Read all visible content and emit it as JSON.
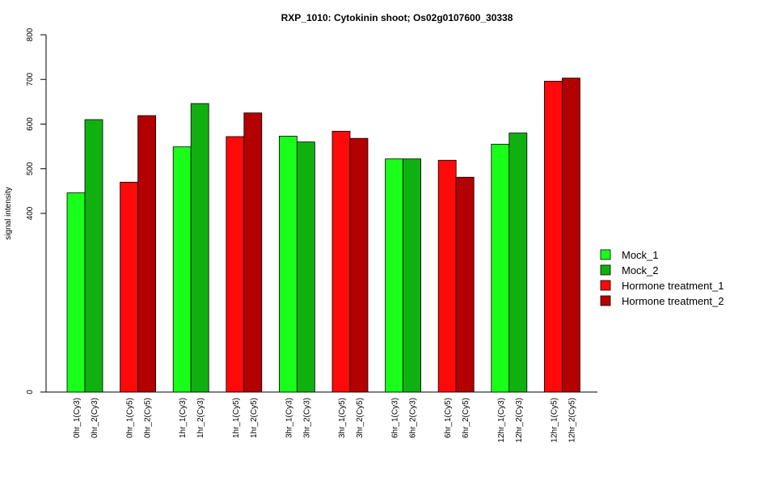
{
  "chart_data": {
    "type": "bar",
    "title": "RXP_1010: Cytokinin shoot; Os02g0107600_30338",
    "xlabel": "",
    "ylabel": "signal intensity",
    "yticks": [
      "0",
      "400",
      "500",
      "600",
      "700",
      "800"
    ],
    "categories": [
      "0hr_1(Cy3)",
      "0hr_2(Cy3)",
      "0hr_1(Cy5)",
      "0hr_2(Cy5)",
      "1hr_1(Cy3)",
      "1hr_2(Cy3)",
      "1hr_1(Cy5)",
      "1hr_2(Cy5)",
      "3hr_1(Cy3)",
      "3hr_2(Cy3)",
      "3hr_1(Cy5)",
      "3hr_2(Cy5)",
      "6hr_1(Cy3)",
      "6hr_2(Cy3)",
      "6hr_1(Cy5)",
      "6hr_2(Cy5)",
      "12hr_1(Cy3)",
      "12hr_2(Cy3)",
      "12hr_1(Cy5)",
      "12hr_2(Cy5)"
    ],
    "values": [
      446,
      610,
      470,
      619,
      549,
      646,
      572,
      625,
      573,
      560,
      584,
      568,
      522,
      522,
      519,
      481,
      555,
      580,
      696,
      703
    ],
    "groups": [
      "Mock_1",
      "Mock_2",
      "Hormone treatment_1",
      "Hormone treatment_2",
      "Mock_1",
      "Mock_2",
      "Hormone treatment_1",
      "Hormone treatment_2",
      "Mock_1",
      "Mock_2",
      "Hormone treatment_1",
      "Hormone treatment_2",
      "Mock_1",
      "Mock_2",
      "Hormone treatment_1",
      "Hormone treatment_2",
      "Mock_1",
      "Mock_2",
      "Hormone treatment_1",
      "Hormone treatment_2"
    ],
    "legend": [
      {
        "name": "Mock_1",
        "color": "#1aff1a"
      },
      {
        "name": "Mock_2",
        "color": "#10b010"
      },
      {
        "name": "Hormone treatment_1",
        "color": "#ff0a0a"
      },
      {
        "name": "Hormone treatment_2",
        "color": "#b30000"
      }
    ],
    "legend_position": "right",
    "grid": false
  }
}
